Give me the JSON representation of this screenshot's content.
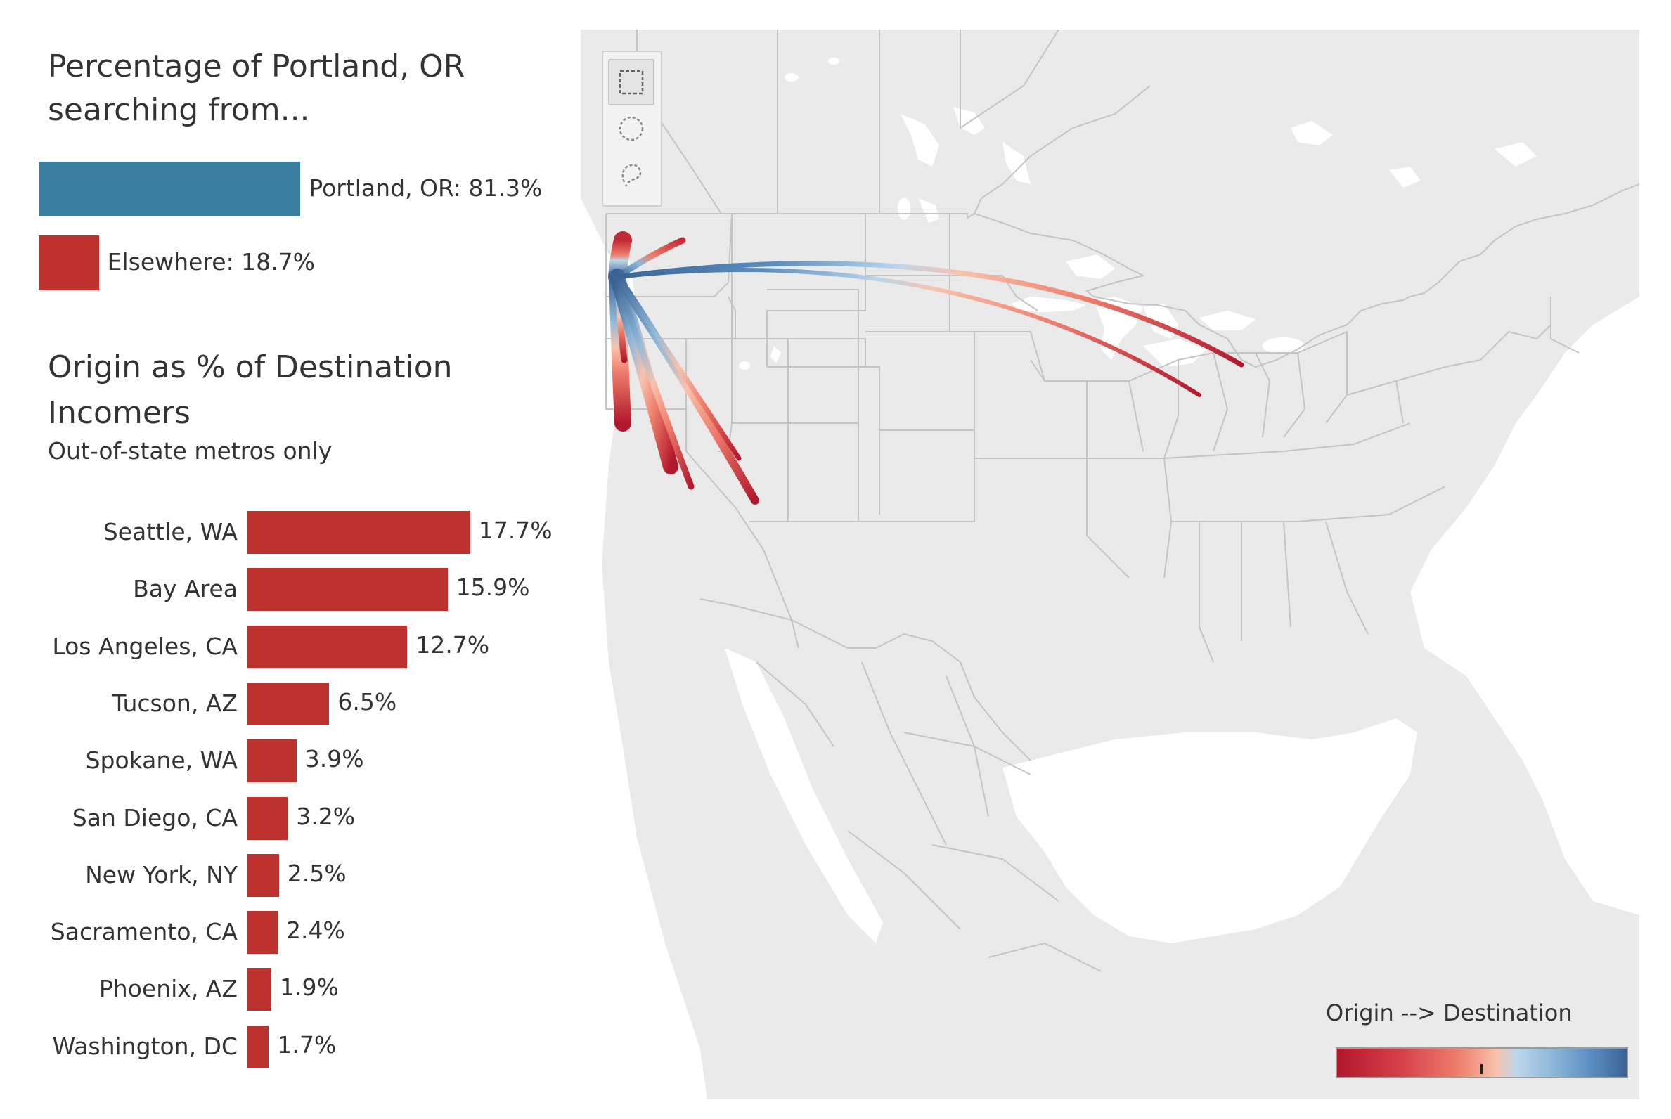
{
  "colors": {
    "portland_bar": "#3a7fa0",
    "elsewhere_bar": "#c0312e",
    "origin_bar": "#bd322e",
    "land": "#eaeaea",
    "borders": "#c4c4c4",
    "water": "#ffffff",
    "flow_origin": "#b2182b",
    "flow_destination": "#3b6494"
  },
  "chart_data": [
    {
      "type": "bar",
      "title": "Percentage of Portland, OR searching from...",
      "categories": [
        "Portland, OR",
        "Elsewhere"
      ],
      "values": [
        81.3,
        18.7
      ],
      "labels": [
        "Portland, OR: 81.3%",
        "Elsewhere: 18.7%"
      ],
      "orientation": "horizontal",
      "colors": [
        "#3a7fa0",
        "#c0312e"
      ]
    },
    {
      "type": "bar",
      "title": "Origin as % of Destination Incomers",
      "subtitle": "Out-of-state metros only",
      "categories": [
        "Seattle, WA",
        "Bay Area",
        "Los Angeles, CA",
        "Tucson, AZ",
        "Spokane, WA",
        "San Diego, CA",
        "New York, NY",
        "Sacramento, CA",
        "Phoenix, AZ",
        "Washington, DC"
      ],
      "values": [
        17.7,
        15.9,
        12.7,
        6.5,
        3.9,
        3.2,
        2.5,
        2.4,
        1.9,
        1.7
      ],
      "labels": [
        "17.7%",
        "15.9%",
        "12.7%",
        "6.5%",
        "3.9%",
        "3.2%",
        "2.5%",
        "2.4%",
        "1.9%",
        "1.7%"
      ],
      "orientation": "horizontal",
      "color": "#bd322e"
    }
  ],
  "map": {
    "type": "flow-map",
    "destination": "Portland, OR",
    "origins": [
      "Seattle, WA",
      "Bay Area",
      "Los Angeles, CA",
      "Tucson, AZ",
      "Spokane, WA",
      "San Diego, CA",
      "New York, NY",
      "Sacramento, CA",
      "Phoenix, AZ",
      "Washington, DC"
    ],
    "toolbar_icons": [
      "rectangle-select-icon",
      "radial-select-icon",
      "lasso-select-icon"
    ],
    "legend_title": "Origin --> Destination"
  }
}
